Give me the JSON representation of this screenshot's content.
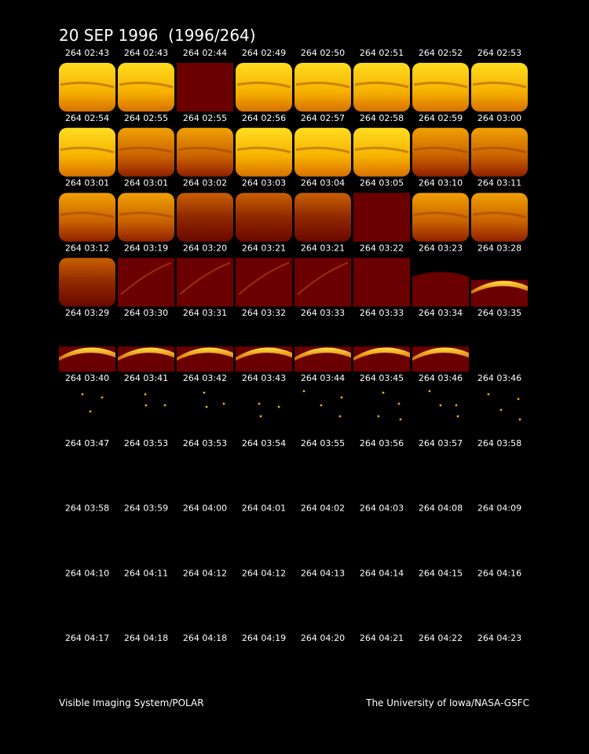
{
  "title": "20 SEP 1996  (1996/264)",
  "frames": [
    [
      "264 02:43",
      "264 02:43",
      "264 02:44",
      "264 02:49",
      "264 02:50",
      "264 02:51",
      "264 02:52",
      "264 02:53"
    ],
    [
      "264 02:54",
      "264 02:55",
      "264 02:55",
      "264 02:56",
      "264 02:57",
      "264 02:58",
      "264 02:59",
      "264 03:00"
    ],
    [
      "264 03:01",
      "264 03:01",
      "264 03:02",
      "264 03:03",
      "264 03:04",
      "264 03:05",
      "264 03:10",
      "264 03:11"
    ],
    [
      "264 03:12",
      "264 03:19",
      "264 03:20",
      "264 03:21",
      "264 03:21",
      "264 03:22",
      "264 03:23",
      "264 03:28"
    ],
    [
      "264 03:29",
      "264 03:30",
      "264 03:31",
      "264 03:32",
      "264 03:33",
      "264 03:33",
      "264 03:34",
      "264 03:35"
    ],
    [
      "264 03:40",
      "264 03:41",
      "264 03:42",
      "264 03:43",
      "264 03:44",
      "264 03:45",
      "264 03:46",
      "264 03:46"
    ],
    [
      "264 03:47",
      "264 03:53",
      "264 03:53",
      "264 03:54",
      "264 03:55",
      "264 03:56",
      "264 03:57",
      "264 03:58"
    ],
    [
      "264 03:58",
      "264 03:59",
      "264 04:00",
      "264 04:01",
      "264 04:02",
      "264 04:03",
      "264 04:08",
      "264 04:09"
    ],
    [
      "264 04:10",
      "264 04:11",
      "264 04:12",
      "264 04:12",
      "264 04:13",
      "264 04:14",
      "264 04:15",
      "264 04:16"
    ],
    [
      "264 04:17",
      "264 04:18",
      "264 04:18",
      "264 04:19",
      "264 04:20",
      "264 04:21",
      "264 04:22",
      "264 04:23"
    ]
  ],
  "footer": {
    "left": "Visible Imaging System/POLAR",
    "right": "The University of Iowa/NASA-GSFC"
  }
}
